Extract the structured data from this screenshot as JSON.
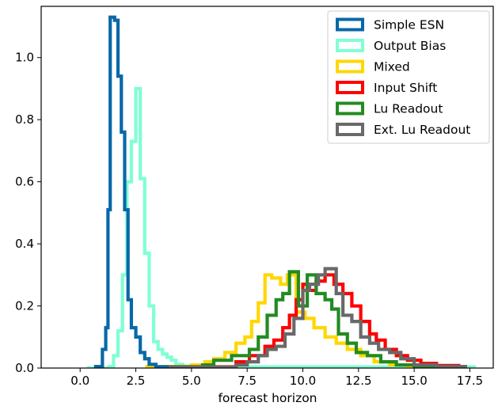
{
  "chart_data": {
    "type": "step histogram",
    "title": "",
    "xlabel": "forecast horizon",
    "ylabel": "",
    "xlim": [
      -1.75,
      18.55
    ],
    "ylim": [
      0,
      1.165
    ],
    "x_ticks": [
      0.0,
      2.5,
      5.0,
      7.5,
      10.0,
      12.5,
      15.0,
      17.5
    ],
    "x_tick_labels": [
      "0.0",
      "2.5",
      "5.0",
      "7.5",
      "10.0",
      "12.5",
      "15.0",
      "17.5"
    ],
    "y_ticks": [
      0.0,
      0.2,
      0.4,
      0.6,
      0.8,
      1.0
    ],
    "y_tick_labels": [
      "0.0",
      "0.2",
      "0.4",
      "0.6",
      "0.8",
      "1.0"
    ],
    "grid": false,
    "legend_position": "top-right",
    "series": [
      {
        "name": "Output Bias",
        "color": "#7fffd4",
        "points": [
          [
            0.3,
            0
          ],
          [
            1.3,
            0
          ],
          [
            1.3,
            0.005
          ],
          [
            1.5,
            0.005
          ],
          [
            1.5,
            0.04
          ],
          [
            1.7,
            0.04
          ],
          [
            1.7,
            0.12
          ],
          [
            1.9,
            0.12
          ],
          [
            1.9,
            0.3
          ],
          [
            2.1,
            0.3
          ],
          [
            2.1,
            0.6
          ],
          [
            2.3,
            0.6
          ],
          [
            2.3,
            0.73
          ],
          [
            2.5,
            0.73
          ],
          [
            2.5,
            0.9
          ],
          [
            2.7,
            0.9
          ],
          [
            2.7,
            0.61
          ],
          [
            2.9,
            0.61
          ],
          [
            2.9,
            0.37
          ],
          [
            3.1,
            0.37
          ],
          [
            3.1,
            0.2
          ],
          [
            3.3,
            0.2
          ],
          [
            3.3,
            0.085
          ],
          [
            3.5,
            0.085
          ],
          [
            3.5,
            0.06
          ],
          [
            3.7,
            0.06
          ],
          [
            3.7,
            0.045
          ],
          [
            3.9,
            0.045
          ],
          [
            3.9,
            0.035
          ],
          [
            4.1,
            0.035
          ],
          [
            4.1,
            0.025
          ],
          [
            4.3,
            0.025
          ],
          [
            4.3,
            0.012
          ],
          [
            4.6,
            0.012
          ],
          [
            4.6,
            0.006
          ],
          [
            5.2,
            0.006
          ],
          [
            5.2,
            0.004
          ],
          [
            17.7,
            0.004
          ],
          [
            17.7,
            0
          ]
        ]
      },
      {
        "name": "Mixed",
        "color": "#ffd700",
        "points": [
          [
            3.0,
            0
          ],
          [
            3.0,
            0.005
          ],
          [
            5.0,
            0.005
          ],
          [
            5.0,
            0.01
          ],
          [
            5.6,
            0.01
          ],
          [
            5.6,
            0.02
          ],
          [
            6.0,
            0.02
          ],
          [
            6.0,
            0.03
          ],
          [
            6.5,
            0.03
          ],
          [
            6.5,
            0.05
          ],
          [
            7.0,
            0.05
          ],
          [
            7.0,
            0.08
          ],
          [
            7.4,
            0.08
          ],
          [
            7.4,
            0.1
          ],
          [
            7.7,
            0.1
          ],
          [
            7.7,
            0.15
          ],
          [
            8.0,
            0.15
          ],
          [
            8.0,
            0.21
          ],
          [
            8.3,
            0.21
          ],
          [
            8.3,
            0.3
          ],
          [
            8.6,
            0.3
          ],
          [
            8.6,
            0.29
          ],
          [
            9.0,
            0.29
          ],
          [
            9.0,
            0.27
          ],
          [
            9.3,
            0.27
          ],
          [
            9.3,
            0.3
          ],
          [
            9.7,
            0.3
          ],
          [
            9.7,
            0.18
          ],
          [
            10.1,
            0.18
          ],
          [
            10.1,
            0.16
          ],
          [
            10.5,
            0.16
          ],
          [
            10.5,
            0.13
          ],
          [
            11.0,
            0.13
          ],
          [
            11.0,
            0.1
          ],
          [
            11.5,
            0.1
          ],
          [
            11.5,
            0.08
          ],
          [
            12.0,
            0.08
          ],
          [
            12.0,
            0.06
          ],
          [
            12.6,
            0.06
          ],
          [
            12.6,
            0.04
          ],
          [
            13.2,
            0.04
          ],
          [
            13.2,
            0.02
          ],
          [
            13.9,
            0.02
          ],
          [
            13.9,
            0.01
          ],
          [
            14.7,
            0.01
          ],
          [
            14.7,
            0.005
          ],
          [
            17.0,
            0.005
          ],
          [
            17.0,
            0
          ]
        ]
      },
      {
        "name": "Input Shift",
        "color": "#ff0000",
        "points": [
          [
            3.5,
            0
          ],
          [
            3.5,
            0.004
          ],
          [
            7.0,
            0.004
          ],
          [
            7.0,
            0.02
          ],
          [
            7.6,
            0.02
          ],
          [
            7.6,
            0.04
          ],
          [
            8.3,
            0.04
          ],
          [
            8.3,
            0.07
          ],
          [
            8.7,
            0.07
          ],
          [
            8.7,
            0.09
          ],
          [
            9.1,
            0.09
          ],
          [
            9.1,
            0.13
          ],
          [
            9.4,
            0.13
          ],
          [
            9.4,
            0.17
          ],
          [
            9.7,
            0.17
          ],
          [
            9.7,
            0.22
          ],
          [
            10.0,
            0.22
          ],
          [
            10.0,
            0.27
          ],
          [
            10.3,
            0.27
          ],
          [
            10.3,
            0.25
          ],
          [
            10.6,
            0.25
          ],
          [
            10.6,
            0.28
          ],
          [
            11.0,
            0.28
          ],
          [
            11.0,
            0.3
          ],
          [
            11.4,
            0.3
          ],
          [
            11.4,
            0.27
          ],
          [
            11.8,
            0.27
          ],
          [
            11.8,
            0.24
          ],
          [
            12.2,
            0.24
          ],
          [
            12.2,
            0.2
          ],
          [
            12.6,
            0.2
          ],
          [
            12.6,
            0.15
          ],
          [
            13.0,
            0.15
          ],
          [
            13.0,
            0.11
          ],
          [
            13.3,
            0.11
          ],
          [
            13.3,
            0.09
          ],
          [
            13.7,
            0.09
          ],
          [
            13.7,
            0.06
          ],
          [
            14.2,
            0.06
          ],
          [
            14.2,
            0.04
          ],
          [
            14.7,
            0.04
          ],
          [
            14.7,
            0.025
          ],
          [
            15.3,
            0.025
          ],
          [
            15.3,
            0.015
          ],
          [
            16.0,
            0.015
          ],
          [
            16.0,
            0.008
          ],
          [
            17.0,
            0.008
          ],
          [
            17.0,
            0
          ]
        ]
      },
      {
        "name": "Lu Readout",
        "color": "#228b22",
        "points": [
          [
            3.5,
            0
          ],
          [
            3.5,
            0.004
          ],
          [
            5.5,
            0.004
          ],
          [
            5.5,
            0.01
          ],
          [
            6.0,
            0.01
          ],
          [
            6.0,
            0.025
          ],
          [
            6.8,
            0.025
          ],
          [
            6.8,
            0.04
          ],
          [
            7.6,
            0.04
          ],
          [
            7.6,
            0.06
          ],
          [
            8.0,
            0.06
          ],
          [
            8.0,
            0.1
          ],
          [
            8.4,
            0.1
          ],
          [
            8.4,
            0.17
          ],
          [
            8.8,
            0.17
          ],
          [
            8.8,
            0.22
          ],
          [
            9.1,
            0.22
          ],
          [
            9.1,
            0.24
          ],
          [
            9.4,
            0.24
          ],
          [
            9.4,
            0.31
          ],
          [
            9.8,
            0.31
          ],
          [
            9.8,
            0.2
          ],
          [
            10.2,
            0.2
          ],
          [
            10.2,
            0.3
          ],
          [
            10.6,
            0.3
          ],
          [
            10.6,
            0.24
          ],
          [
            11.0,
            0.24
          ],
          [
            11.0,
            0.22
          ],
          [
            11.3,
            0.22
          ],
          [
            11.3,
            0.19
          ],
          [
            11.6,
            0.19
          ],
          [
            11.6,
            0.11
          ],
          [
            12.0,
            0.11
          ],
          [
            12.0,
            0.08
          ],
          [
            12.4,
            0.08
          ],
          [
            12.4,
            0.05
          ],
          [
            12.9,
            0.05
          ],
          [
            12.9,
            0.04
          ],
          [
            13.5,
            0.04
          ],
          [
            13.5,
            0.02
          ],
          [
            14.2,
            0.02
          ],
          [
            14.2,
            0.01
          ],
          [
            15.0,
            0.01
          ],
          [
            15.0,
            0.005
          ],
          [
            16.0,
            0.005
          ],
          [
            16.0,
            0
          ]
        ]
      },
      {
        "name": "Ext. Lu Readout",
        "color": "#696969",
        "points": [
          [
            3.5,
            0
          ],
          [
            3.5,
            0.003
          ],
          [
            7.0,
            0.003
          ],
          [
            7.0,
            0.01
          ],
          [
            7.5,
            0.01
          ],
          [
            7.5,
            0.02
          ],
          [
            8.0,
            0.02
          ],
          [
            8.0,
            0.04
          ],
          [
            8.4,
            0.04
          ],
          [
            8.4,
            0.06
          ],
          [
            8.8,
            0.06
          ],
          [
            8.8,
            0.07
          ],
          [
            9.2,
            0.07
          ],
          [
            9.2,
            0.11
          ],
          [
            9.6,
            0.11
          ],
          [
            9.6,
            0.16
          ],
          [
            10.0,
            0.16
          ],
          [
            10.0,
            0.25
          ],
          [
            10.3,
            0.25
          ],
          [
            10.3,
            0.27
          ],
          [
            10.7,
            0.27
          ],
          [
            10.7,
            0.3
          ],
          [
            11.0,
            0.3
          ],
          [
            11.0,
            0.32
          ],
          [
            11.5,
            0.32
          ],
          [
            11.5,
            0.24
          ],
          [
            11.8,
            0.24
          ],
          [
            11.8,
            0.17
          ],
          [
            12.2,
            0.17
          ],
          [
            12.2,
            0.15
          ],
          [
            12.6,
            0.15
          ],
          [
            12.6,
            0.1
          ],
          [
            13.0,
            0.1
          ],
          [
            13.0,
            0.08
          ],
          [
            13.4,
            0.08
          ],
          [
            13.4,
            0.06
          ],
          [
            13.9,
            0.06
          ],
          [
            13.9,
            0.05
          ],
          [
            14.4,
            0.05
          ],
          [
            14.4,
            0.03
          ],
          [
            15.0,
            0.03
          ],
          [
            15.0,
            0.01
          ],
          [
            16.0,
            0.01
          ],
          [
            16.0,
            0.005
          ],
          [
            17.3,
            0.005
          ],
          [
            17.3,
            0
          ]
        ]
      },
      {
        "name": "Simple ESN",
        "color": "#0868a8",
        "points": [
          [
            0.7,
            0
          ],
          [
            0.7,
            0.005
          ],
          [
            1.0,
            0.005
          ],
          [
            1.0,
            0.06
          ],
          [
            1.15,
            0.06
          ],
          [
            1.15,
            0.13
          ],
          [
            1.25,
            0.13
          ],
          [
            1.25,
            0.51
          ],
          [
            1.35,
            0.51
          ],
          [
            1.35,
            1.13
          ],
          [
            1.55,
            1.13
          ],
          [
            1.55,
            1.12
          ],
          [
            1.7,
            1.12
          ],
          [
            1.7,
            0.94
          ],
          [
            1.85,
            0.94
          ],
          [
            1.85,
            0.76
          ],
          [
            2.0,
            0.76
          ],
          [
            2.0,
            0.51
          ],
          [
            2.15,
            0.51
          ],
          [
            2.15,
            0.22
          ],
          [
            2.3,
            0.22
          ],
          [
            2.3,
            0.13
          ],
          [
            2.5,
            0.13
          ],
          [
            2.5,
            0.1
          ],
          [
            2.7,
            0.1
          ],
          [
            2.7,
            0.05
          ],
          [
            2.9,
            0.05
          ],
          [
            2.9,
            0.03
          ],
          [
            3.1,
            0.03
          ],
          [
            3.1,
            0.012
          ],
          [
            3.4,
            0.012
          ],
          [
            3.4,
            0.004
          ],
          [
            3.9,
            0.004
          ],
          [
            3.9,
            0
          ]
        ]
      }
    ],
    "legend_order": [
      "Simple ESN",
      "Output Bias",
      "Mixed",
      "Input Shift",
      "Lu Readout",
      "Ext. Lu Readout"
    ]
  }
}
